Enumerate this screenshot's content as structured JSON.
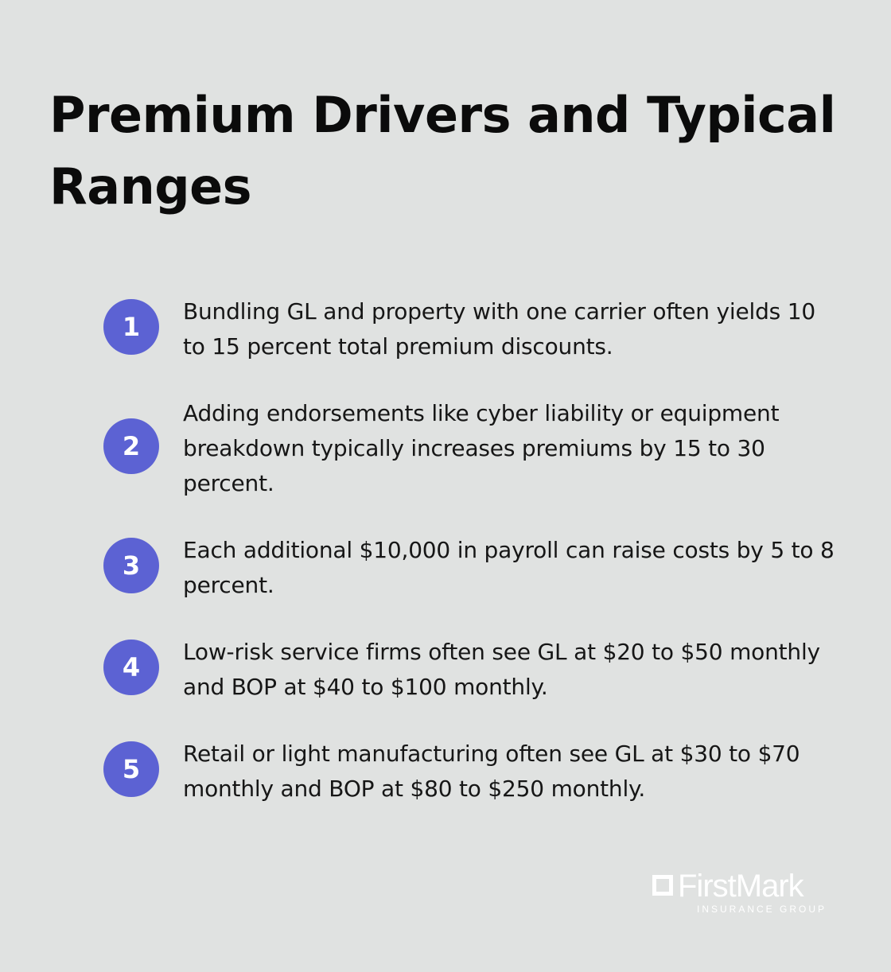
{
  "title": "Premium Drivers and Typical Ranges",
  "items": [
    {
      "number": "1",
      "text": "Bundling GL and property with one carrier often yields 10 to 15 percent total premium discounts."
    },
    {
      "number": "2",
      "text": "Adding endorsements like cyber liability or equipment breakdown typically increases premiums by 15 to 30 percent."
    },
    {
      "number": "3",
      "text": "Each additional $10,000 in payroll can raise costs by 5 to 8 percent."
    },
    {
      "number": "4",
      "text": "Low-risk service firms often see GL at $20 to $50 monthly and BOP at $40 to $100 monthly."
    },
    {
      "number": "5",
      "text": "Retail or light manufacturing often see GL at $30 to $70 monthly and BOP at $80 to $250 monthly."
    }
  ],
  "logo": {
    "name": "FirstMark",
    "subtitle": "INSURANCE GROUP"
  },
  "colors": {
    "background": "#e0e2e1",
    "badge": "#5c62d3",
    "text": "#161616"
  }
}
